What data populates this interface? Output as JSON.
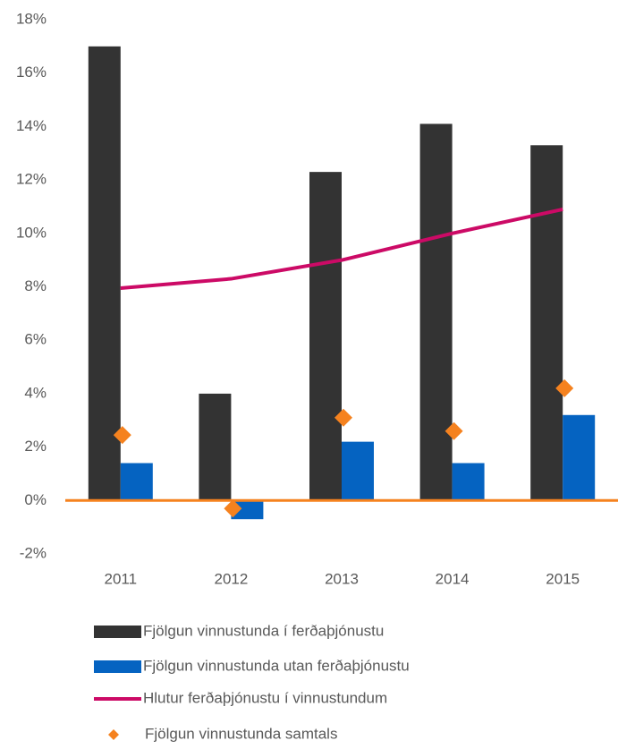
{
  "chart_data": {
    "type": "bar",
    "categories": [
      "2011",
      "2012",
      "2013",
      "2014",
      "2015"
    ],
    "series": [
      {
        "name": "Fjölgun vinnustunda í ferðaþjónustu",
        "type": "bar",
        "color": "#333333",
        "values": [
          17.0,
          4.0,
          12.3,
          14.1,
          13.3
        ]
      },
      {
        "name": "Fjölgun vinnustunda utan ferðaþjónustu",
        "type": "bar",
        "color": "#0563c1",
        "values": [
          1.4,
          -0.7,
          2.2,
          1.4,
          3.2
        ]
      },
      {
        "name": "Hlutur ferðaþjónustu í vinnustundum",
        "type": "line",
        "color": "#cc0a66",
        "values": [
          7.95,
          8.3,
          9.0,
          10.0,
          10.9
        ]
      },
      {
        "name": "Fjölgun vinnustunda samtals",
        "type": "scatter",
        "color": "#f5821f",
        "values": [
          2.45,
          -0.3,
          3.1,
          2.6,
          4.2
        ]
      }
    ],
    "ylim": [
      -2,
      18
    ],
    "yticks": [
      {
        "value": -2,
        "label": "-2%"
      },
      {
        "value": 0,
        "label": "0%"
      },
      {
        "value": 2,
        "label": "2%"
      },
      {
        "value": 4,
        "label": "4%"
      },
      {
        "value": 6,
        "label": "6%"
      },
      {
        "value": 8,
        "label": "8%"
      },
      {
        "value": 10,
        "label": "10%"
      },
      {
        "value": 12,
        "label": "12%"
      },
      {
        "value": 14,
        "label": "14%"
      },
      {
        "value": 16,
        "label": "16%"
      },
      {
        "value": 18,
        "label": "18%"
      }
    ],
    "grid": false,
    "zero_line_color": "#f5821f",
    "legend": "bottom"
  }
}
